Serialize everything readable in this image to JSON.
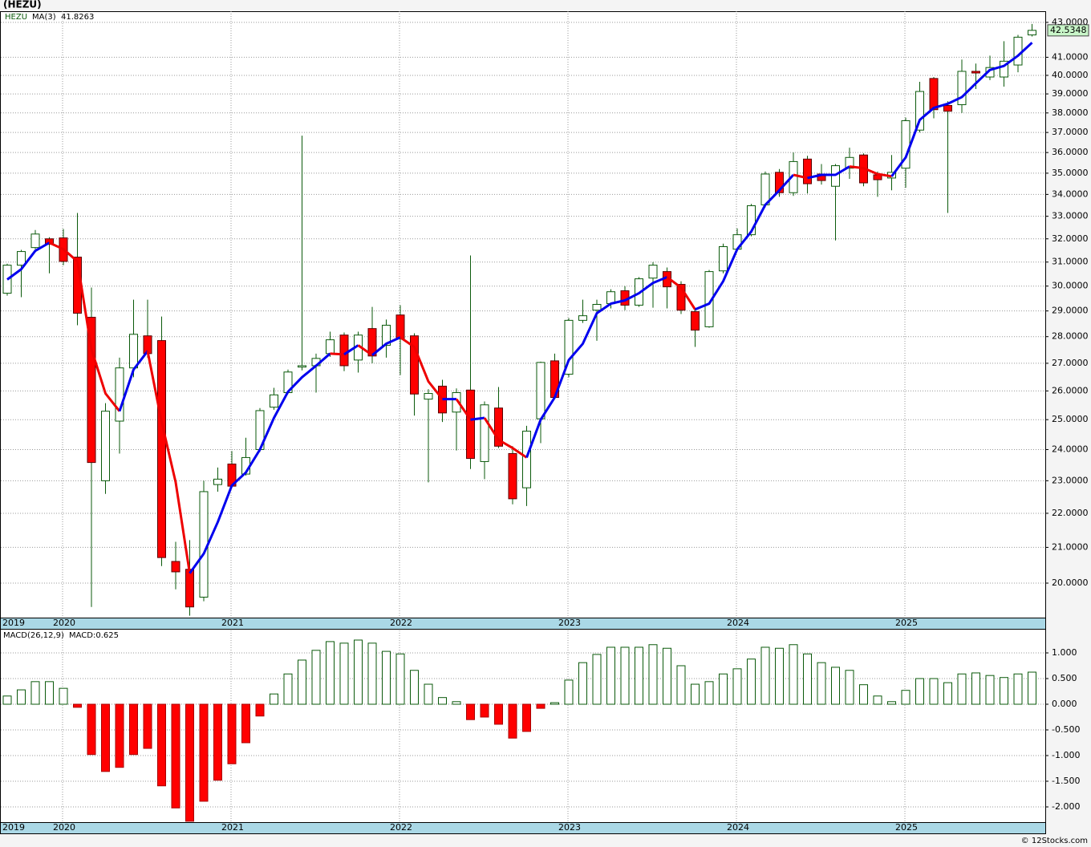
{
  "footer": "© 12Stocks.com",
  "chart_data": [
    {
      "type": "candlestick",
      "title": "(HEZU)",
      "name": "HEZU",
      "categories": [
        "2019",
        null,
        null,
        null,
        "2020",
        null,
        null,
        null,
        null,
        null,
        null,
        null,
        null,
        null,
        null,
        null,
        "2021",
        null,
        null,
        null,
        null,
        null,
        null,
        null,
        null,
        null,
        null,
        null,
        "2022",
        null,
        null,
        null,
        null,
        null,
        null,
        null,
        null,
        null,
        null,
        null,
        "2023",
        null,
        null,
        null,
        null,
        null,
        null,
        null,
        null,
        null,
        null,
        null,
        "2024",
        null,
        null,
        null,
        null,
        null,
        null,
        null,
        null,
        null,
        null,
        null,
        "2025",
        null,
        null,
        null,
        null,
        null,
        null,
        null,
        null,
        null
      ],
      "open": [
        29.71,
        30.87,
        31.62,
        32.0,
        32.04,
        31.21,
        28.75,
        23.0,
        24.95,
        26.83,
        28.03,
        27.85,
        20.6,
        20.38,
        19.62,
        22.88,
        23.53,
        23.21,
        24.0,
        25.43,
        25.94,
        26.86,
        26.91,
        27.36,
        28.06,
        27.12,
        28.31,
        27.67,
        28.84,
        28.03,
        25.71,
        26.17,
        25.26,
        26.03,
        23.61,
        25.4,
        23.87,
        22.78,
        25.03,
        27.09,
        26.6,
        28.63,
        29.03,
        29.29,
        29.81,
        29.23,
        30.33,
        30.6,
        30.07,
        28.97,
        28.38,
        30.63,
        31.55,
        32.18,
        33.52,
        35.04,
        34.08,
        35.68,
        34.96,
        34.38,
        35.24,
        35.88,
        34.92,
        34.77,
        35.24,
        37.12,
        39.83,
        38.39,
        38.43,
        40.22,
        39.91,
        39.91,
        40.57,
        42.27
      ],
      "high": [
        30.93,
        31.52,
        32.39,
        32.07,
        32.43,
        33.15,
        29.94,
        25.57,
        27.21,
        29.45,
        29.45,
        28.78,
        21.16,
        21.21,
        23.0,
        23.42,
        23.95,
        24.39,
        25.4,
        26.11,
        26.77,
        36.84,
        27.36,
        28.19,
        28.16,
        28.19,
        29.16,
        28.66,
        29.23,
        28.13,
        26.06,
        26.4,
        26.09,
        31.28,
        25.63,
        26.14,
        24.11,
        24.79,
        27.06,
        27.36,
        28.72,
        29.45,
        29.45,
        29.87,
        30.0,
        30.37,
        31.0,
        30.77,
        30.2,
        29.06,
        30.67,
        31.79,
        32.46,
        33.56,
        35.08,
        35.2,
        36.0,
        35.84,
        35.44,
        35.44,
        36.24,
        35.96,
        35.08,
        35.88,
        37.76,
        39.65,
        39.91,
        38.61,
        40.87,
        40.65,
        41.09,
        41.91,
        42.27,
        42.91
      ],
      "low": [
        29.61,
        29.55,
        31.55,
        30.53,
        30.87,
        28.44,
        19.36,
        22.59,
        23.87,
        26.49,
        27.21,
        20.47,
        19.83,
        19.13,
        19.51,
        22.66,
        22.8,
        23.16,
        23.92,
        25.34,
        25.89,
        26.74,
        25.94,
        27.24,
        26.71,
        26.66,
        27.0,
        27.21,
        26.57,
        25.14,
        22.95,
        24.92,
        23.97,
        23.37,
        23.05,
        24.05,
        22.27,
        22.22,
        24.21,
        25.71,
        26.49,
        28.53,
        27.84,
        29.1,
        29.03,
        29.16,
        29.13,
        29.1,
        28.88,
        27.61,
        28.34,
        30.53,
        31.48,
        32.11,
        33.41,
        33.89,
        33.93,
        34.04,
        34.46,
        31.93,
        34.73,
        34.38,
        33.89,
        34.19,
        34.31,
        37.0,
        37.72,
        33.15,
        38.0,
        39.26,
        39.74,
        39.39,
        40.17,
        42.18
      ],
      "close": [
        30.87,
        31.45,
        32.21,
        31.76,
        31.03,
        28.91,
        23.58,
        25.29,
        26.83,
        28.09,
        27.36,
        20.71,
        20.31,
        19.36,
        22.66,
        23.05,
        22.83,
        23.74,
        25.31,
        25.86,
        26.68,
        26.91,
        27.18,
        27.88,
        26.91,
        28.06,
        27.27,
        28.44,
        27.91,
        25.89,
        25.91,
        25.23,
        25.94,
        23.71,
        25.51,
        24.11,
        22.44,
        24.61,
        27.03,
        25.77,
        28.63,
        28.81,
        29.26,
        29.77,
        29.23,
        30.3,
        30.87,
        29.97,
        29.03,
        28.25,
        30.6,
        31.66,
        32.18,
        33.48,
        34.96,
        34.08,
        35.56,
        34.5,
        34.65,
        35.36,
        35.76,
        34.54,
        34.69,
        35.04,
        37.6,
        39.13,
        38.17,
        38.09,
        40.22,
        40.13,
        40.43,
        40.78,
        42.14,
        42.5348
      ],
      "up_color": "#ffffff",
      "down_color": "#ff0000",
      "outline_color": "#0b5a0b",
      "last_price_color": "#c8f5c8",
      "ma": {
        "name": "MA(3)",
        "rising_color": "#0000ee",
        "falling_color": "#ee0000",
        "values": [
          30.27,
          30.7,
          31.48,
          31.83,
          31.55,
          31.03,
          27.52,
          25.91,
          25.29,
          26.77,
          27.45,
          24.92,
          22.95,
          20.27,
          20.82,
          21.74,
          22.85,
          23.26,
          24.0,
          25.06,
          25.97,
          26.49,
          26.91,
          27.36,
          27.33,
          27.67,
          27.3,
          27.73,
          27.97,
          27.61,
          26.34,
          25.71,
          25.71,
          25.0,
          25.06,
          24.32,
          24.05,
          23.74,
          25.0,
          25.77,
          27.12,
          27.73,
          28.91,
          29.29,
          29.42,
          29.71,
          30.13,
          30.37,
          29.94,
          29.06,
          29.29,
          30.2,
          31.55,
          32.32,
          33.52,
          34.19,
          34.92,
          34.77,
          34.92,
          34.92,
          35.32,
          35.24,
          34.96,
          34.85,
          35.76,
          37.64,
          38.26,
          38.48,
          38.83,
          39.57,
          40.3,
          40.52,
          41.09,
          41.8263
        ]
      },
      "log_scale": true,
      "grid": true,
      "ylim": [
        19.08,
        43.66
      ],
      "yticks": [
        {
          "value": 20,
          "label": "20.0000"
        },
        {
          "value": 21,
          "label": "21.0000"
        },
        {
          "value": 22,
          "label": "22.0000"
        },
        {
          "value": 23,
          "label": "23.0000"
        },
        {
          "value": 24,
          "label": "24.0000"
        },
        {
          "value": 25,
          "label": "25.0000"
        },
        {
          "value": 26,
          "label": "26.0000"
        },
        {
          "value": 27,
          "label": "27.0000"
        },
        {
          "value": 28,
          "label": "28.0000"
        },
        {
          "value": 29,
          "label": "29.0000"
        },
        {
          "value": 30,
          "label": "30.0000"
        },
        {
          "value": 31,
          "label": "31.0000"
        },
        {
          "value": 32,
          "label": "32.0000"
        },
        {
          "value": 33,
          "label": "33.0000"
        },
        {
          "value": 34,
          "label": "34.0000"
        },
        {
          "value": 35,
          "label": "35.0000"
        },
        {
          "value": 36,
          "label": "36.0000"
        },
        {
          "value": 37,
          "label": "37.0000"
        },
        {
          "value": 38,
          "label": "38.0000"
        },
        {
          "value": 39,
          "label": "39.0000"
        },
        {
          "value": 40,
          "label": "40.0000"
        },
        {
          "value": 41,
          "label": "41.0000"
        },
        {
          "value": 43,
          "label": "43.0000"
        }
      ]
    },
    {
      "type": "bar",
      "name": "MACD(26,12,9)",
      "value_label": "MACD:0.625",
      "categories": [
        "2019",
        null,
        null,
        null,
        "2020",
        null,
        null,
        null,
        null,
        null,
        null,
        null,
        null,
        null,
        null,
        null,
        "2021",
        null,
        null,
        null,
        null,
        null,
        null,
        null,
        null,
        null,
        null,
        null,
        "2022",
        null,
        null,
        null,
        null,
        null,
        null,
        null,
        null,
        null,
        null,
        null,
        "2023",
        null,
        null,
        null,
        null,
        null,
        null,
        null,
        null,
        null,
        null,
        null,
        "2024",
        null,
        null,
        null,
        null,
        null,
        null,
        null,
        null,
        null,
        null,
        null,
        "2025",
        null,
        null,
        null,
        null,
        null,
        null,
        null,
        null,
        null
      ],
      "values": [
        0.16,
        0.28,
        0.44,
        0.44,
        0.31,
        -0.06,
        -0.98,
        -1.31,
        -1.23,
        -0.98,
        -0.86,
        -1.59,
        -2.02,
        -2.28,
        -1.89,
        -1.48,
        -1.16,
        -0.75,
        -0.23,
        0.2,
        0.59,
        0.86,
        1.05,
        1.22,
        1.19,
        1.25,
        1.19,
        1.03,
        0.98,
        0.66,
        0.39,
        0.13,
        0.05,
        -0.3,
        -0.25,
        -0.39,
        -0.66,
        -0.53,
        -0.08,
        0.03,
        0.47,
        0.81,
        0.97,
        1.11,
        1.11,
        1.11,
        1.16,
        1.09,
        0.75,
        0.39,
        0.44,
        0.59,
        0.69,
        0.88,
        1.11,
        1.09,
        1.16,
        0.98,
        0.81,
        0.72,
        0.66,
        0.38,
        0.16,
        0.05,
        0.27,
        0.5,
        0.5,
        0.42,
        0.59,
        0.61,
        0.56,
        0.52,
        0.59,
        0.625
      ],
      "positive_color": "#ffffff",
      "negative_color": "#ff0000",
      "outline_color": "#0b5a0b",
      "grid": true,
      "ylim": [
        -2.297,
        1.4375
      ],
      "yticks": [
        {
          "value": 1,
          "label": "1.000"
        },
        {
          "value": 0.5,
          "label": "0.500"
        },
        {
          "value": 0,
          "label": "0.000"
        },
        {
          "value": -0.5,
          "label": "-0.500"
        },
        {
          "value": -1,
          "label": "-1.000"
        },
        {
          "value": -1.5,
          "label": "-1.500"
        },
        {
          "value": -2,
          "label": "-2.000"
        }
      ]
    }
  ]
}
